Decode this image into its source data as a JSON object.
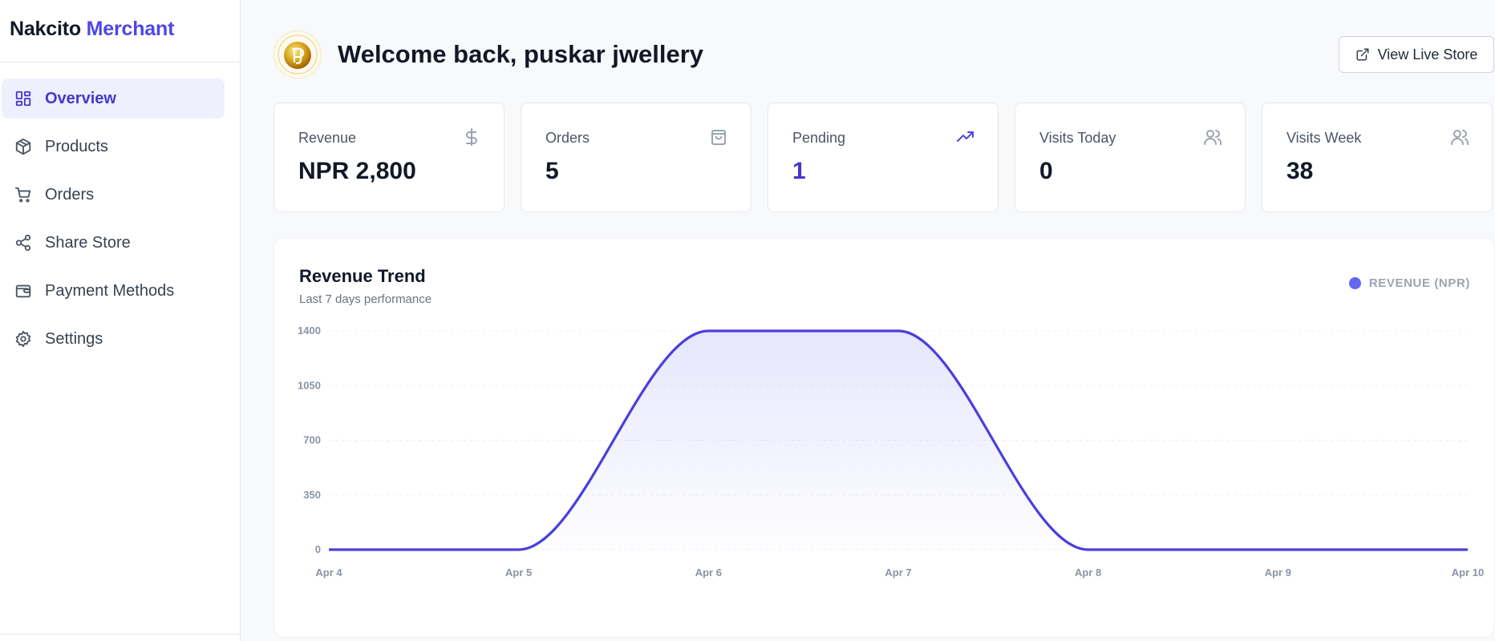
{
  "brand": {
    "name": "Nakcito",
    "accent": "Merchant"
  },
  "nav": [
    {
      "label": "Overview",
      "icon": "dashboard-icon",
      "active": true
    },
    {
      "label": "Products",
      "icon": "package-icon",
      "active": false
    },
    {
      "label": "Orders",
      "icon": "cart-icon",
      "active": false
    },
    {
      "label": "Share Store",
      "icon": "share-icon",
      "active": false
    },
    {
      "label": "Payment Methods",
      "icon": "wallet-icon",
      "active": false
    },
    {
      "label": "Settings",
      "icon": "gear-icon",
      "active": false
    }
  ],
  "header": {
    "welcome": "Welcome back, puskar jwellery",
    "logo_icon": "store-logo",
    "live_button": "View Live Store"
  },
  "stats": [
    {
      "title": "Revenue",
      "value": "NPR 2,800",
      "icon": "dollar-icon"
    },
    {
      "title": "Orders",
      "value": "5",
      "icon": "shopping-bag-icon"
    },
    {
      "title": "Pending",
      "value": "1",
      "icon": "trending-up-icon"
    },
    {
      "title": "Visits Today",
      "value": "0",
      "icon": "users-icon"
    },
    {
      "title": "Visits Week",
      "value": "38",
      "icon": "users-icon"
    }
  ],
  "colors": {
    "accent": "#4f46e5",
    "line": "#4a3fdb",
    "legend_dot": "#6366f1"
  },
  "chart_data": {
    "type": "area",
    "title": "Revenue Trend",
    "subtitle": "Last 7 days performance",
    "legend": "REVENUE (NPR)",
    "legend_position": "top-right",
    "x": [
      "Apr 4",
      "Apr 5",
      "Apr 6",
      "Apr 7",
      "Apr 8",
      "Apr 9",
      "Apr 10"
    ],
    "series": [
      {
        "name": "REVENUE (NPR)",
        "values": [
          0,
          0,
          1400,
          1400,
          0,
          0,
          0
        ]
      }
    ],
    "yticks": [
      0,
      350,
      700,
      1050,
      1400
    ],
    "ylim": [
      0,
      1400
    ],
    "grid": true
  }
}
